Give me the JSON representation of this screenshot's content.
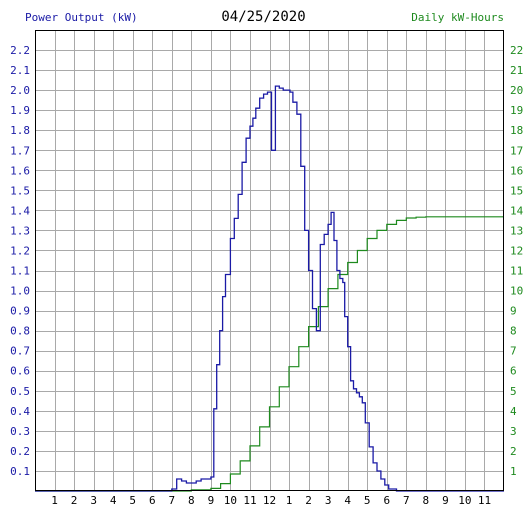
{
  "chart_data": {
    "type": "line",
    "title": "04/25/2020",
    "left_axis_label": "Power Output (kW)",
    "right_axis_label": "Daily kW-Hours",
    "x_tick_labels": [
      "1",
      "2",
      "3",
      "4",
      "5",
      "6",
      "7",
      "8",
      "9",
      "10",
      "11",
      "12",
      "1",
      "2",
      "3",
      "4",
      "5",
      "6",
      "7",
      "8",
      "9",
      "10",
      "11"
    ],
    "x_range_hours": [
      0,
      24
    ],
    "y_left_range": [
      0,
      2.3
    ],
    "y_left_ticks": [
      "0.1",
      "0.2",
      "0.3",
      "0.4",
      "0.5",
      "0.6",
      "0.7",
      "0.8",
      "0.9",
      "1.0",
      "1.1",
      "1.2",
      "1.3",
      "1.4",
      "1.5",
      "1.6",
      "1.7",
      "1.8",
      "1.9",
      "2.0",
      "2.1",
      "2.2"
    ],
    "y_right_range": [
      0,
      23
    ],
    "y_right_ticks": [
      "1",
      "2",
      "3",
      "4",
      "5",
      "6",
      "7",
      "8",
      "9",
      "10",
      "11",
      "12",
      "13",
      "14",
      "15",
      "16",
      "17",
      "18",
      "19",
      "20",
      "21",
      "22"
    ],
    "grid": true,
    "colors": {
      "power": "#1a1aa6",
      "energy": "#1e8a1e",
      "grid": "#a9a9a9",
      "frame": "#000000"
    },
    "series": [
      {
        "name": "Power Output (kW)",
        "axis": "left",
        "x": [
          0,
          7.0,
          7.25,
          7.5,
          7.75,
          8.0,
          8.25,
          8.5,
          8.75,
          9.0,
          9.15,
          9.3,
          9.45,
          9.6,
          9.75,
          10.0,
          10.2,
          10.4,
          10.6,
          10.8,
          11.0,
          11.15,
          11.3,
          11.5,
          11.7,
          11.9,
          12.1,
          12.3,
          12.5,
          12.7,
          12.9,
          13.05,
          13.2,
          13.4,
          13.6,
          13.8,
          14.0,
          14.2,
          14.4,
          14.6,
          14.8,
          15.0,
          15.15,
          15.3,
          15.45,
          15.6,
          15.75,
          15.85,
          16.0,
          16.15,
          16.3,
          16.45,
          16.6,
          16.75,
          16.9,
          17.1,
          17.3,
          17.5,
          17.7,
          17.9,
          18.1,
          18.3,
          18.5,
          18.7,
          18.9,
          19.1,
          19.3,
          19.5,
          19.7,
          19.9,
          20.2,
          20.5,
          20.8,
          21.2,
          21.6,
          24.0
        ],
        "y": [
          0,
          0.01,
          0.06,
          0.05,
          0.04,
          0.04,
          0.05,
          0.06,
          0.06,
          0.07,
          0.41,
          0.63,
          0.8,
          0.97,
          1.08,
          1.26,
          1.36,
          1.48,
          1.64,
          1.76,
          1.82,
          1.86,
          1.91,
          1.96,
          1.98,
          1.99,
          1.7,
          2.02,
          2.01,
          2.0,
          2.0,
          1.99,
          1.94,
          1.88,
          1.62,
          1.3,
          1.1,
          0.91,
          0.8,
          1.23,
          1.28,
          1.33,
          1.39,
          1.25,
          1.1,
          1.06,
          1.04,
          0.87,
          0.72,
          0.55,
          0.51,
          0.49,
          0.47,
          0.44,
          0.34,
          0.22,
          0.14,
          0.1,
          0.06,
          0.03,
          0.01,
          0.01,
          0.0,
          0.0,
          0.0,
          0.0,
          0.0,
          0.0,
          0.0,
          0.0,
          0.0,
          0.0,
          0.0,
          0.0,
          0.0,
          0.0
        ]
      },
      {
        "name": "Daily kW-Hours",
        "axis": "right",
        "x": [
          0,
          7.0,
          8.0,
          9.0,
          9.5,
          10.0,
          10.5,
          11.0,
          11.5,
          12.0,
          12.5,
          13.0,
          13.5,
          14.0,
          14.5,
          15.0,
          15.5,
          16.0,
          16.5,
          17.0,
          17.5,
          18.0,
          18.5,
          19.0,
          19.5,
          20.0,
          21.0,
          24.0
        ],
        "y": [
          0,
          0.0,
          0.06,
          0.13,
          0.37,
          0.85,
          1.5,
          2.25,
          3.2,
          4.2,
          5.2,
          6.2,
          7.2,
          8.2,
          9.2,
          10.1,
          10.8,
          11.4,
          12.0,
          12.6,
          13.0,
          13.3,
          13.5,
          13.62,
          13.66,
          13.68,
          13.68,
          13.68
        ]
      }
    ]
  }
}
